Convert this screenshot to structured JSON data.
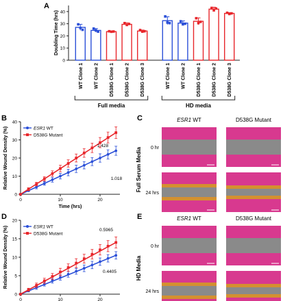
{
  "panels": {
    "a": "A",
    "b": "B",
    "c": "C",
    "d": "D",
    "e": "E"
  },
  "chart_data": [
    {
      "panel": "A",
      "type": "bar",
      "ylabel": "Doubling Time (hrs)",
      "ylim": [
        0,
        45
      ],
      "yticks": [
        0,
        10,
        20,
        30,
        40
      ],
      "categories": [
        "WT Clone 1",
        "WT Clone 2",
        "D538G Clone 1",
        "D538G Clone 2",
        "D538G Clone 3",
        "WT Clone 1",
        "WT Clone 2",
        "D538G Clone 1",
        "D538G Clone 2",
        "D538G Clone 3"
      ],
      "groups": [
        {
          "label": "Full media",
          "indices": [
            0,
            1,
            2,
            3,
            4
          ]
        },
        {
          "label": "HD media",
          "indices": [
            5,
            6,
            7,
            8,
            9
          ]
        }
      ],
      "values": [
        27,
        24.5,
        23.5,
        29.5,
        24,
        32.5,
        30.5,
        32,
        42,
        38.5
      ],
      "errors": [
        2.5,
        1.5,
        0.6,
        1.2,
        0.8,
        3.2,
        1.8,
        2.8,
        1.6,
        0.6
      ],
      "points": [
        [
          29.5,
          26.5,
          25
        ],
        [
          26,
          24.5,
          23.5
        ],
        [
          23.8,
          23.4,
          23.6
        ],
        [
          30.5,
          29,
          29.8
        ],
        [
          24.8,
          23.5,
          23.8
        ],
        [
          36,
          31,
          30.5
        ],
        [
          32,
          29.5,
          30
        ],
        [
          34.5,
          30.5,
          31.5
        ],
        [
          43,
          41,
          42.5
        ],
        [
          39,
          38,
          38.5
        ]
      ],
      "colors": [
        "#2a4fd8",
        "#2a4fd8",
        "#e8262b",
        "#e8262b",
        "#e8262b",
        "#2a4fd8",
        "#2a4fd8",
        "#e8262b",
        "#e8262b",
        "#e8262b"
      ]
    },
    {
      "panel": "B",
      "type": "line",
      "xlabel": "Time (hrs)",
      "ylabel": "Relative Wound Density (%)",
      "xlim": [
        0,
        25
      ],
      "ylim": [
        0,
        40
      ],
      "xticks": [
        0,
        10,
        20
      ],
      "yticks": [
        0,
        10,
        20,
        30,
        40
      ],
      "series": [
        {
          "name": "ESR1 WT",
          "name_prefix": "ESR1",
          "name_suffix": " WT",
          "color": "#2a4fd8",
          "marker": "circle",
          "x": [
            0,
            2,
            4,
            6,
            8,
            10,
            12,
            14,
            16,
            18,
            20,
            22,
            24
          ],
          "y": [
            0,
            2,
            4,
            6,
            8,
            10,
            12,
            14,
            16,
            18,
            20,
            22,
            24
          ],
          "err": [
            0,
            0.5,
            1,
            1,
            1.3,
            1.5,
            1.8,
            2,
            2,
            2.2,
            2.3,
            2.5,
            2.5
          ]
        },
        {
          "name": "D538G Mutant",
          "color": "#e8262b",
          "marker": "square",
          "x": [
            0,
            2,
            4,
            6,
            8,
            10,
            12,
            14,
            16,
            18,
            20,
            22,
            24
          ],
          "y": [
            0,
            2.8,
            5.6,
            8.5,
            11.4,
            14.2,
            17,
            20,
            22.8,
            25.6,
            28.5,
            31.3,
            34
          ],
          "err": [
            0,
            0.8,
            1,
            1.2,
            1.5,
            1.8,
            2,
            2.2,
            2.4,
            2.6,
            2.8,
            3,
            3.2
          ]
        }
      ],
      "annotations": [
        "1.428",
        "1.018"
      ]
    },
    {
      "panel": "D",
      "type": "line",
      "xlabel": "Time (hrs)",
      "ylabel": "Relative Wound Density (%)",
      "xlim": [
        0,
        25
      ],
      "ylim": [
        0,
        20
      ],
      "xticks": [
        0,
        10,
        20
      ],
      "yticks": [
        0,
        5,
        10,
        15,
        20
      ],
      "series": [
        {
          "name": "ESR1 WT",
          "name_prefix": "ESR1",
          "name_suffix": " WT",
          "color": "#2a4fd8",
          "marker": "circle",
          "x": [
            0,
            2,
            4,
            6,
            8,
            10,
            12,
            14,
            16,
            18,
            20,
            22,
            24
          ],
          "y": [
            0,
            0.9,
            1.8,
            2.7,
            3.6,
            4.5,
            5.4,
            6.2,
            7,
            7.9,
            8.8,
            9.7,
            10.5
          ],
          "err": [
            0,
            0.3,
            0.5,
            0.5,
            0.6,
            0.7,
            0.8,
            0.8,
            0.9,
            1,
            1,
            1,
            1
          ]
        },
        {
          "name": "D538G Mutant",
          "color": "#e8262b",
          "marker": "square",
          "x": [
            0,
            2,
            4,
            6,
            8,
            10,
            12,
            14,
            16,
            18,
            20,
            22,
            24
          ],
          "y": [
            0,
            1.2,
            2.4,
            3.6,
            4.8,
            6,
            7.2,
            8.4,
            9.6,
            10.8,
            12,
            13,
            14
          ],
          "err": [
            0,
            0.4,
            0.6,
            0.7,
            0.8,
            1,
            1,
            1.2,
            1.2,
            1.3,
            1.4,
            1.5,
            1.5
          ]
        }
      ],
      "annotations": [
        "0.5965",
        "0.4405"
      ]
    }
  ],
  "micrographs": {
    "c": {
      "col_headers": [
        {
          "prefix": "ESR1",
          "suffix": " WT"
        },
        {
          "prefix": "",
          "suffix": "D538G Mutant"
        }
      ],
      "rows": [
        "0 hr",
        "24 hrs"
      ],
      "side_label": "Full Serum Media"
    },
    "e": {
      "col_headers": [
        {
          "prefix": "ESR1",
          "suffix": " WT"
        },
        {
          "prefix": "",
          "suffix": "D538G Mutant"
        }
      ],
      "rows": [
        "0 hr",
        "24 hrs"
      ],
      "side_label": "HD Media"
    },
    "colors": {
      "cells": "#d8398f",
      "gap": "#8a8a8a",
      "edge": "#d4a020"
    }
  }
}
